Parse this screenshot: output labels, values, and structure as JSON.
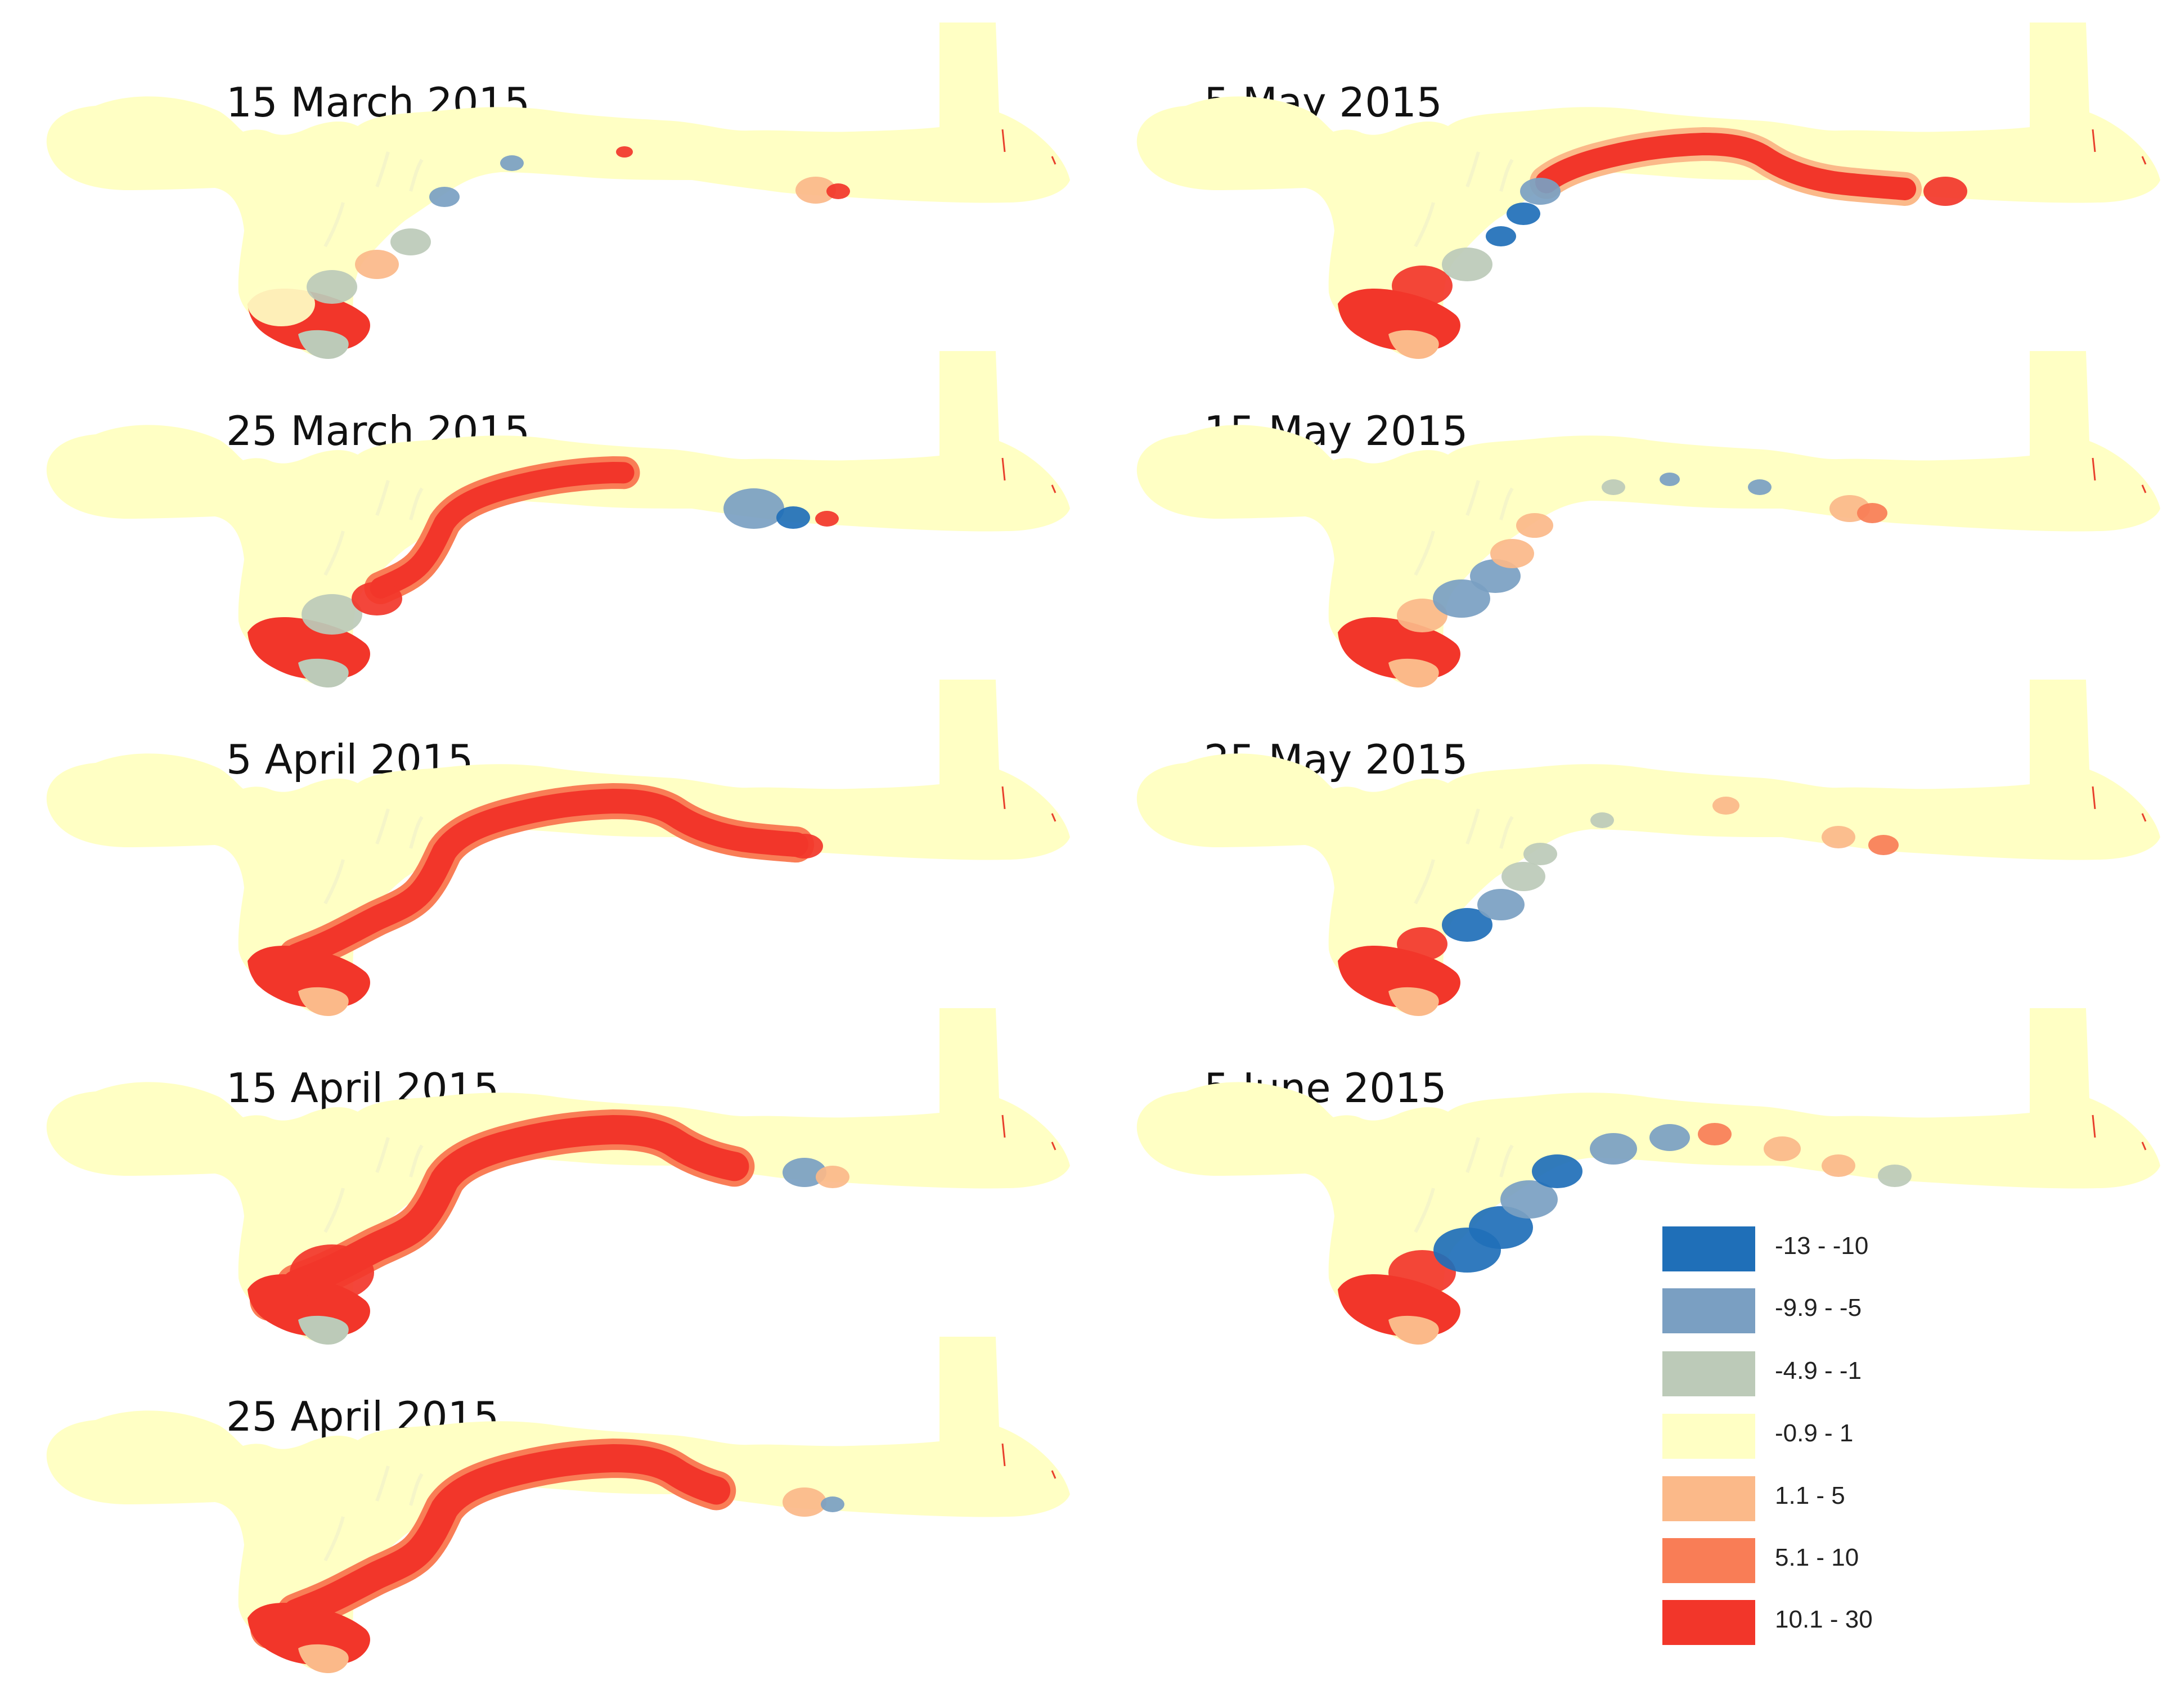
{
  "figure": {
    "panels": [
      {
        "title": "15 March 2015",
        "variant": "march15"
      },
      {
        "title": "25 March 2015",
        "variant": "march25"
      },
      {
        "title": "5 April 2015",
        "variant": "april5"
      },
      {
        "title": "15 April 2015",
        "variant": "april15"
      },
      {
        "title": "25 April 2015",
        "variant": "april25"
      },
      {
        "title": "5 May 2015",
        "variant": "may5"
      },
      {
        "title": "15 May 2015",
        "variant": "may15"
      },
      {
        "title": "25 May 2015",
        "variant": "may25"
      },
      {
        "title": "5 June 2015",
        "variant": "june5"
      }
    ]
  },
  "legend": {
    "items": [
      {
        "label": "-13 - -10",
        "color": "#1f6fb8"
      },
      {
        "label": "-9.9 - -5",
        "color": "#7a9fc2"
      },
      {
        "label": "-4.9 - -1",
        "color": "#bccab8"
      },
      {
        "label": "-0.9 - 1",
        "color": "#ffffc4"
      },
      {
        "label": "1.1 - 5",
        "color": "#fbb989"
      },
      {
        "label": "5.1 - 10",
        "color": "#f97d56"
      },
      {
        "label": "10.1 - 30",
        "color": "#f2362a"
      }
    ]
  }
}
